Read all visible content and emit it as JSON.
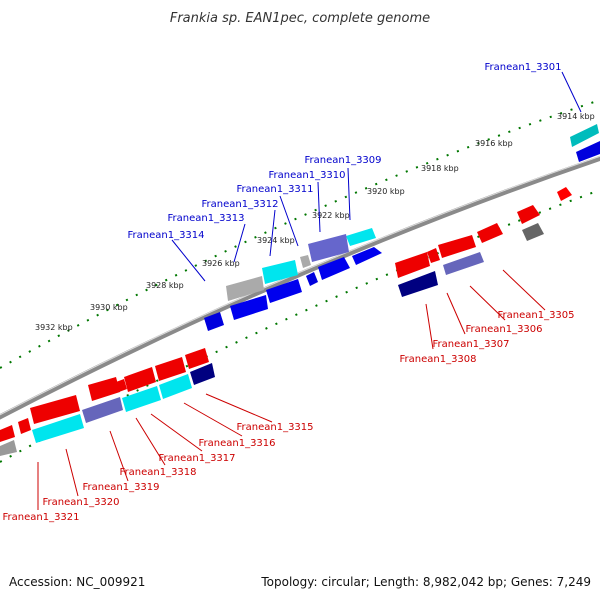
{
  "title": "Frankia sp. EAN1pec, complete genome",
  "accession": "Accession: NC_009921",
  "summary": "Topology: circular; Length: 8,982,042 bp; Genes: 7,249",
  "colors": {
    "forward_gene": "#ff0000",
    "reverse_gene": "#0000ee",
    "forward_label": "#cc0000",
    "reverse_label": "#0000cc",
    "cyan_gene": "#00e5ee",
    "navy_gene": "#000080",
    "slate_gene": "#6666bb",
    "grey_gene": "#999999",
    "backbone": "#888888",
    "tick": "#007700"
  },
  "kbp_ticks": [
    "3914 kbp",
    "3916 kbp",
    "3918 kbp",
    "3920 kbp",
    "3922 kbp",
    "3924 kbp",
    "3926 kbp",
    "3928 kbp",
    "3930 kbp",
    "3932 kbp"
  ],
  "reverse_labels": [
    "Franean1_3301",
    "Franean1_3309",
    "Franean1_3310",
    "Franean1_3311",
    "Franean1_3312",
    "Franean1_3313",
    "Franean1_3314"
  ],
  "forward_labels": [
    "Franean1_3305",
    "Franean1_3306",
    "Franean1_3307",
    "Franean1_3308",
    "Franean1_3315",
    "Franean1_3316",
    "Franean1_3317",
    "Franean1_3318",
    "Franean1_3319",
    "Franean1_3320",
    "Franean1_3321"
  ]
}
